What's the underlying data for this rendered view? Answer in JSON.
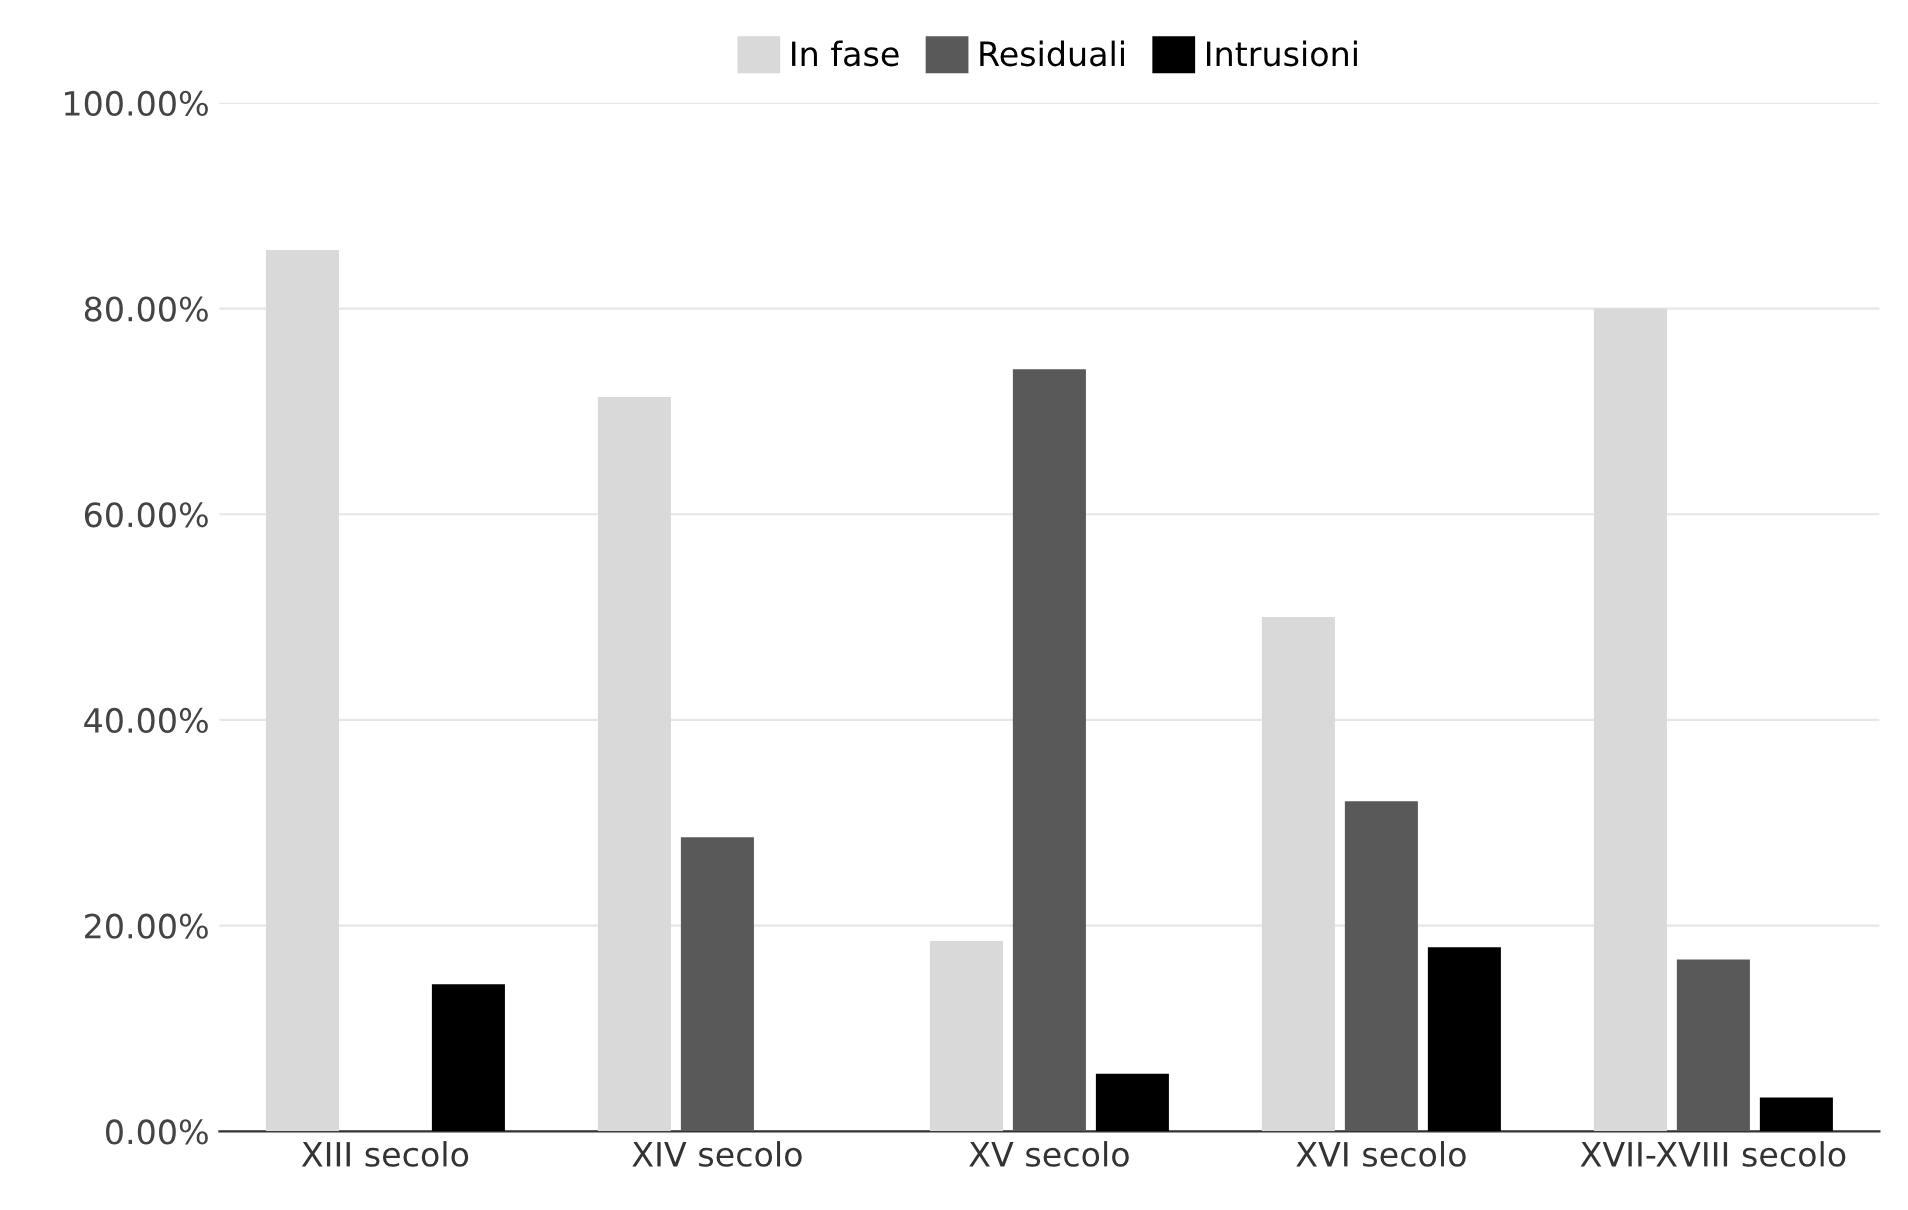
{
  "chart_data": {
    "type": "bar",
    "categories": [
      "XIII secolo",
      "XIV secolo",
      "XV secolo",
      "XVI secolo",
      "XVII-XVIII secolo"
    ],
    "series": [
      {
        "name": "In fase",
        "color": "#d9d9d9",
        "values": [
          85.7,
          71.4,
          18.5,
          50.0,
          80.0
        ]
      },
      {
        "name": "Residuali",
        "color": "#595959",
        "values": [
          0,
          28.6,
          74.1,
          32.1,
          16.7
        ]
      },
      {
        "name": "Intrusioni",
        "color": "#000000",
        "values": [
          14.3,
          0,
          5.6,
          17.9,
          3.3
        ]
      }
    ],
    "ylim": [
      0,
      100
    ],
    "yticks": [
      {
        "value": 0,
        "label": "0.00%"
      },
      {
        "value": 20,
        "label": "20.00%"
      },
      {
        "value": 40,
        "label": "40.00%"
      },
      {
        "value": 60,
        "label": "60.00%"
      },
      {
        "value": 80,
        "label": "80.00%"
      },
      {
        "value": 100,
        "label": "100.00%"
      }
    ],
    "grid": "y",
    "legend": "top"
  }
}
